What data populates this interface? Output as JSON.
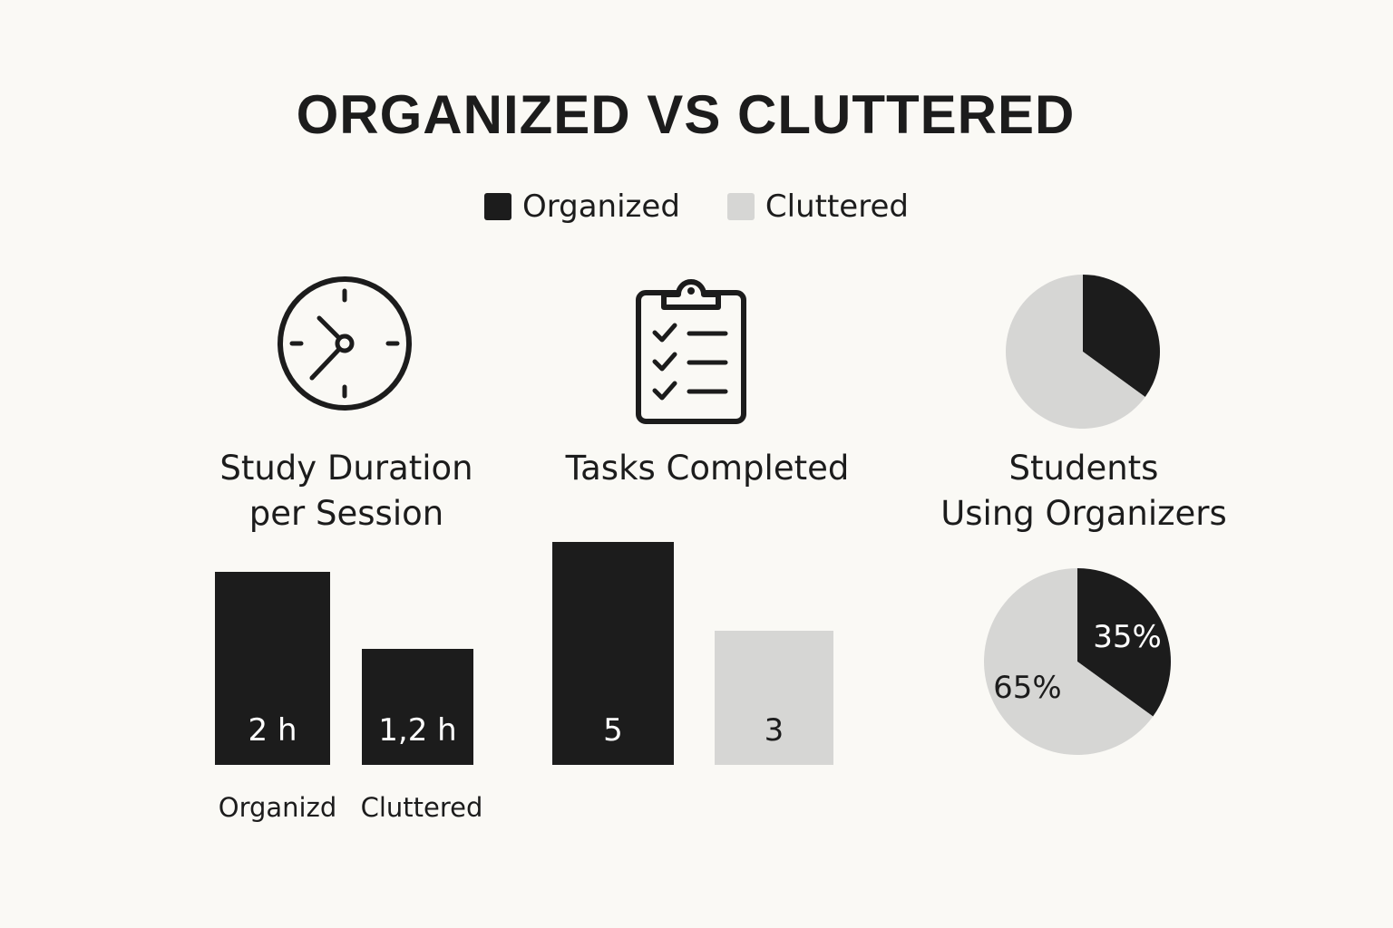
{
  "title": "ORGANIZED VS CLUTTERED",
  "colors": {
    "organized": "#1c1c1c",
    "cluttered": "#d6d6d4",
    "background": "#faf9f5"
  },
  "legend": [
    {
      "label": "Organized",
      "color": "#1c1c1c"
    },
    {
      "label": "Cluttered",
      "color": "#d6d6d4"
    }
  ],
  "icons": [
    "clock-icon",
    "clipboard-checklist-icon",
    "pie-chart-icon"
  ],
  "panels": {
    "study": {
      "title_line1": "Study Duration",
      "title_line2": "per Session"
    },
    "tasks": {
      "title": "Tasks Completed"
    },
    "students": {
      "title_line1": "Students",
      "title_line2": "Using Organizers"
    }
  },
  "chart_data": [
    {
      "type": "bar",
      "title": "Study Duration per Session",
      "categories": [
        "Organizd",
        "Cluttered"
      ],
      "values": [
        2,
        1.2
      ],
      "value_labels": [
        "2 h",
        "1,2 h"
      ],
      "colors": [
        "#1c1c1c",
        "#1c1c1c"
      ]
    },
    {
      "type": "bar",
      "title": "Tasks Completed",
      "categories": [
        "Organized",
        "Cluttered"
      ],
      "values": [
        5,
        3
      ],
      "value_labels": [
        "5",
        "3"
      ],
      "colors": [
        "#1c1c1c",
        "#d6d6d4"
      ]
    },
    {
      "type": "pie",
      "title": "Students Using Organizers",
      "slices": [
        {
          "label": "35%",
          "value": 35,
          "color": "#1c1c1c"
        },
        {
          "label": "65%",
          "value": 65,
          "color": "#d6d6d4"
        }
      ]
    }
  ]
}
